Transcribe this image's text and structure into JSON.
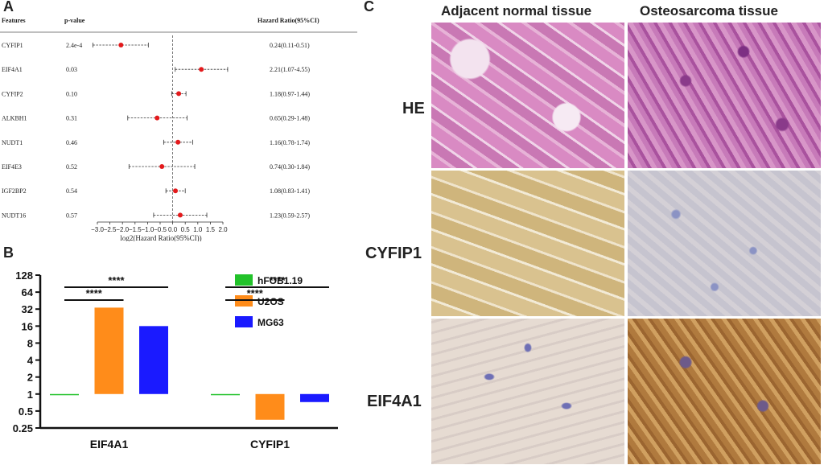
{
  "panels": {
    "a": "A",
    "b": "B",
    "c": "C"
  },
  "forest": {
    "headers": {
      "feature": "Features",
      "p": "p-value",
      "hr": "Hazard Ratio(95%CI)"
    },
    "xlabel": "log2(Hazard Ratio(95%CI))",
    "ticks": [
      "-3.0",
      "-2.5",
      "-2.0",
      "-1.5",
      "-1.0",
      "-0.5",
      "0.0",
      "0.5",
      "1.0",
      "1.5",
      "2.0"
    ],
    "colors": {
      "point": "#e31a1c",
      "line": "#333333"
    }
  },
  "chart_data": [
    {
      "type": "scatter",
      "title": "",
      "xlabel": "log2(Hazard Ratio(95%CI))",
      "xlim": [
        -3.0,
        2.0
      ],
      "rows": [
        {
          "feature": "CYFIP1",
          "p": "2.4e-4",
          "hr_text": "0.24(0.11-0.51)",
          "log2hr": -2.06,
          "lo": -3.18,
          "hi": -0.97
        },
        {
          "feature": "EIF4A1",
          "p": "0.03",
          "hr_text": "2.21(1.07-4.55)",
          "log2hr": 1.14,
          "lo": 0.1,
          "hi": 2.19
        },
        {
          "feature": "CYFIP2",
          "p": "0.10",
          "hr_text": "1.18(0.97-1.44)",
          "log2hr": 0.24,
          "lo": -0.04,
          "hi": 0.53
        },
        {
          "feature": "ALKBH1",
          "p": "0.31",
          "hr_text": "0.65(0.29-1.48)",
          "log2hr": -0.62,
          "lo": -1.79,
          "hi": 0.57
        },
        {
          "feature": "NUDT1",
          "p": "0.46",
          "hr_text": "1.16(0.78-1.74)",
          "log2hr": 0.21,
          "lo": -0.36,
          "hi": 0.8
        },
        {
          "feature": "EIF4E3",
          "p": "0.52",
          "hr_text": "0.74(0.30-1.84)",
          "log2hr": -0.43,
          "lo": -1.74,
          "hi": 0.88
        },
        {
          "feature": "IGF2BP2",
          "p": "0.54",
          "hr_text": "1.08(0.83-1.41)",
          "log2hr": 0.11,
          "lo": -0.27,
          "hi": 0.5
        },
        {
          "feature": "NUDT16",
          "p": "0.57",
          "hr_text": "1.23(0.59-2.57)",
          "log2hr": 0.3,
          "lo": -0.76,
          "hi": 1.36
        }
      ]
    },
    {
      "type": "bar",
      "title": "",
      "categories": [
        "EIF4A1",
        "CYFIP1"
      ],
      "yscale": "log2",
      "ylim": [
        0.25,
        128
      ],
      "yticks": [
        "128",
        "64",
        "32",
        "16",
        "8",
        "4",
        "2",
        "1",
        "0.5",
        "0.25"
      ],
      "series": [
        {
          "name": "hFOB1.19",
          "color": "#22c22a",
          "values": [
            1,
            1
          ]
        },
        {
          "name": "U2OS",
          "color": "#ff8c1a",
          "values": [
            34,
            0.35
          ]
        },
        {
          "name": "MG63",
          "color": "#1a1aff",
          "values": [
            16,
            0.72
          ]
        }
      ],
      "significance": [
        {
          "group": "EIF4A1",
          "pair": "hFOB1.19-U2OS",
          "label": "****"
        },
        {
          "group": "EIF4A1",
          "pair": "hFOB1.19-MG63",
          "label": "****"
        },
        {
          "group": "CYFIP1",
          "pair": "hFOB1.19-U2OS",
          "label": "****"
        },
        {
          "group": "CYFIP1",
          "pair": "hFOB1.19-MG63",
          "label": "****"
        }
      ]
    }
  ],
  "histology": {
    "columns": [
      "Adjacent normal tissue",
      "Osteosarcoma tissue"
    ],
    "rows": [
      "HE",
      "CYFIP1",
      "EIF4A1"
    ]
  }
}
